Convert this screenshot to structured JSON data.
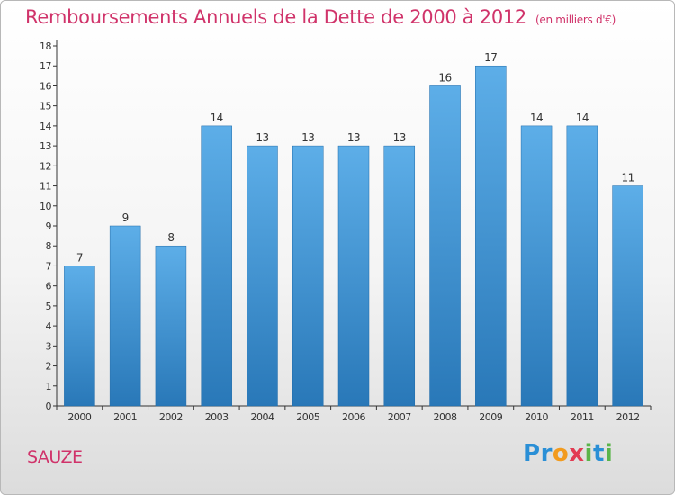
{
  "header": {
    "title": "Remboursements Annuels de la Dette de 2000 à 2012",
    "unit": "(en milliers d'€)"
  },
  "footer": {
    "commune": "SAUZE",
    "logo_letters": [
      "P",
      "r",
      "o",
      "x",
      "i",
      "t",
      "i"
    ],
    "logo_colors": [
      "#2a8fd6",
      "#2a8fd6",
      "#f29b1e",
      "#e23b52",
      "#5ab44a",
      "#2a8fd6",
      "#5ab44a"
    ]
  },
  "colors": {
    "bar_top": "#5daee8",
    "bar_bottom": "#2978b8",
    "axis": "#333333",
    "title": "#d0336a"
  },
  "chart_data": {
    "type": "bar",
    "categories": [
      "2000",
      "2001",
      "2002",
      "2003",
      "2004",
      "2005",
      "2006",
      "2007",
      "2008",
      "2009",
      "2010",
      "2011",
      "2012"
    ],
    "values": [
      7,
      9,
      8,
      14,
      13,
      13,
      13,
      13,
      16,
      17,
      14,
      14,
      11
    ],
    "data_labels": [
      "7",
      "9",
      "8",
      "14",
      "13",
      "13",
      "13",
      "13",
      "16",
      "17",
      "14",
      "14",
      "11"
    ],
    "yticks": [
      0,
      1,
      2,
      3,
      4,
      5,
      6,
      7,
      8,
      9,
      10,
      11,
      12,
      13,
      14,
      15,
      16,
      17,
      18
    ],
    "ylim": [
      0,
      18
    ],
    "grid": false
  }
}
